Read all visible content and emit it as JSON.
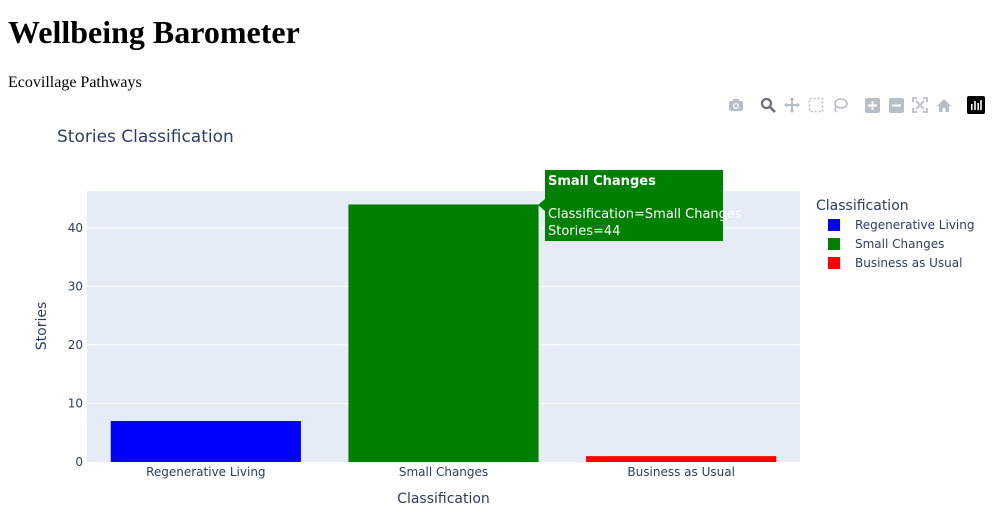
{
  "page": {
    "title": "Wellbeing Barometer",
    "subtitle": "Ecovillage Pathways"
  },
  "modebar": {
    "icons": [
      "camera-icon",
      "zoom-icon",
      "pan-icon",
      "box-select-icon",
      "lasso-select-icon",
      "zoom-in-icon",
      "zoom-out-icon",
      "autoscale-icon",
      "reset-axes-icon",
      "plotly-logo-icon"
    ]
  },
  "chart_data": {
    "type": "bar",
    "title": "Stories Classification",
    "xlabel": "Classification",
    "ylabel": "Stories",
    "categories": [
      "Regenerative Living",
      "Small Changes",
      "Business as Usual"
    ],
    "values": [
      7,
      44,
      1
    ],
    "colors": [
      "#0000ff",
      "#008000",
      "#ff0000"
    ],
    "ylim": [
      0,
      46.3
    ],
    "yticks": [
      0,
      10,
      20,
      30,
      40
    ],
    "grid": true,
    "plot_bgcolor": "#e5ecf6",
    "legend": {
      "title": "Classification",
      "placement": "right",
      "entries": [
        "Regenerative Living",
        "Small Changes",
        "Business as Usual"
      ]
    },
    "hover": {
      "title": "Small Changes",
      "lines": [
        "Classification=Small Changes",
        "Stories=44"
      ],
      "color": "#008000"
    }
  }
}
